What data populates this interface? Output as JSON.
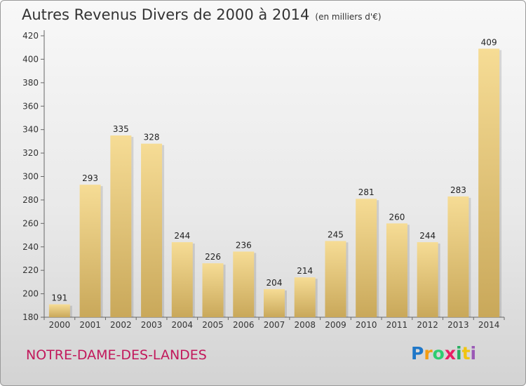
{
  "title": "Autres Revenus Divers de 2000 à 2014",
  "subtitle": "(en milliers d'€)",
  "commune": "NOTRE-DAME-DES-LANDES",
  "logo": {
    "letters": [
      "P",
      "r",
      "o",
      "x",
      "i",
      "t",
      "i"
    ],
    "colors": [
      "#1f77c8",
      "#f39c12",
      "#2ecc71",
      "#e91e63",
      "#27ae60",
      "#f1c40f",
      "#9b59b6"
    ]
  },
  "colors": {
    "bar_light": "#f6dc95",
    "bar_dark": "#c9a85a",
    "commune": "#c2185b",
    "axis": "#555555"
  },
  "chart_data": {
    "type": "bar",
    "title": "Autres Revenus Divers de 2000 à 2014",
    "ylim": [
      180,
      420
    ],
    "yticks": [
      180,
      200,
      220,
      240,
      260,
      280,
      300,
      320,
      340,
      360,
      380,
      400,
      420
    ],
    "grid": false,
    "categories": [
      "2000",
      "2001",
      "2002",
      "2003",
      "2004",
      "2005",
      "2006",
      "2007",
      "2008",
      "2009",
      "2010",
      "2011",
      "2012",
      "2013",
      "2014"
    ],
    "values": [
      191,
      293,
      335,
      328,
      244,
      226,
      236,
      204,
      214,
      245,
      281,
      260,
      244,
      283,
      409
    ]
  }
}
